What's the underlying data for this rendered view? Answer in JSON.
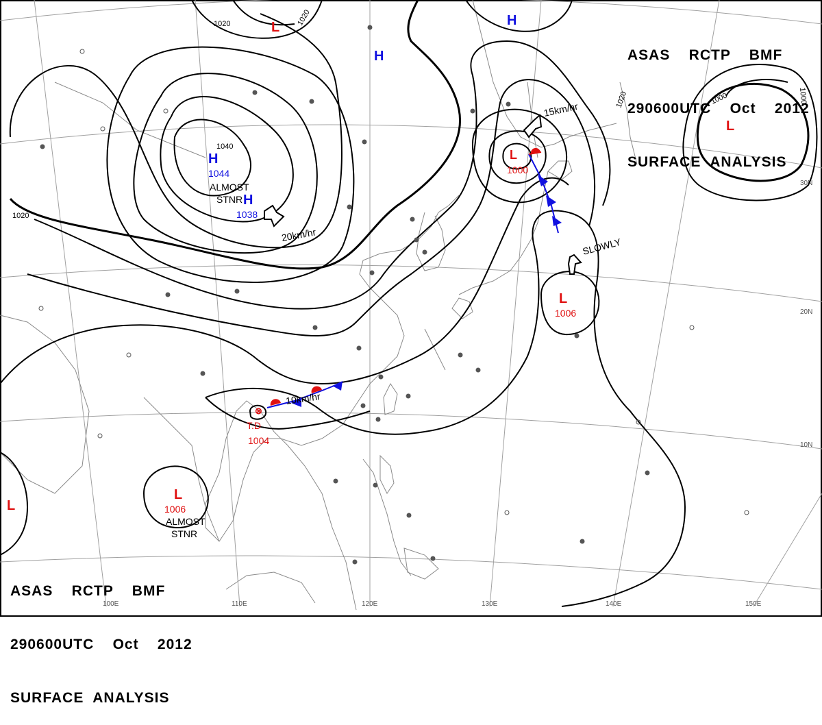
{
  "header": {
    "line1": "ASAS    RCTP    BMF",
    "line2": "290600UTC    Oct    2012",
    "line3": "SURFACE  ANALYSIS"
  },
  "colors": {
    "isobar": "#000000",
    "high": "#1010e0",
    "low": "#e01010",
    "cold_front": "#1010e0",
    "warm_front": "#e01010",
    "coast": "#8a8a8a",
    "grid": "#a0a0a0"
  },
  "grid_labels": {
    "lat": [
      "30N",
      "20N",
      "10N"
    ],
    "lon": [
      "100E",
      "110E",
      "120E",
      "130E",
      "140E",
      "150E"
    ]
  },
  "isobar_labels": [
    "1020",
    "1020",
    "1020",
    "1020",
    "1000",
    "1000",
    "1040"
  ],
  "pressure_systems": [
    {
      "type": "H",
      "value": "1044",
      "note": "ALMOST\nSTNR"
    },
    {
      "type": "H",
      "value": "1038",
      "note": ""
    },
    {
      "type": "H",
      "value": "",
      "note": ""
    },
    {
      "type": "H",
      "value": "",
      "note": ""
    },
    {
      "type": "L",
      "value": "",
      "note": ""
    },
    {
      "type": "L",
      "value": "1000",
      "note": ""
    },
    {
      "type": "L",
      "value": "",
      "note": ""
    },
    {
      "type": "L",
      "value": "1006",
      "note": ""
    },
    {
      "type": "T.D",
      "value": "1004",
      "note": ""
    },
    {
      "type": "L",
      "value": "1006",
      "note": "ALMOST\nSTNR"
    },
    {
      "type": "L",
      "value": "",
      "note": ""
    }
  ],
  "motion_labels": [
    "20km/hr",
    "15km/hr",
    "SLOWLY",
    "10km/hr"
  ]
}
